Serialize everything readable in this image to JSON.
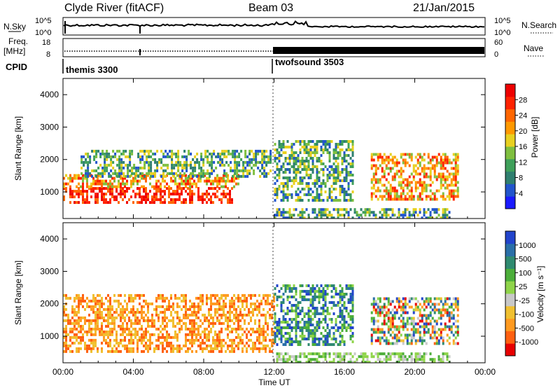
{
  "header": {
    "station": "Clyde River (fitACF)",
    "beam": "Beam 03",
    "date": "21/Jan/2015"
  },
  "noise_panel": {
    "left_label": "N.Sky",
    "right_label": "N.Search",
    "left_ticks": [
      "10^5",
      "10^0"
    ],
    "right_ticks": [
      "10^5",
      "10^0"
    ]
  },
  "freq_panel": {
    "left_label_1": "Freq.",
    "left_label_2": "[MHz]",
    "right_label": "Nave",
    "left_ticks": [
      "18",
      "8"
    ],
    "right_ticks": [
      "60",
      "0"
    ]
  },
  "cpid": {
    "label": "CPID",
    "segments": [
      {
        "name": "themis 3300",
        "start_hour": 0
      },
      {
        "name": "twofsound 3503",
        "start_hour": 12
      }
    ]
  },
  "chart_data": [
    {
      "type": "heatmap",
      "quantity": "Power",
      "ylabel": "Slant Range [km]",
      "xlabel": "",
      "ylim": [
        180,
        4500
      ],
      "yticks": [
        1000,
        2000,
        3000,
        4000
      ],
      "xlim": [
        0,
        24
      ],
      "xticklabels": [
        "00:00",
        "04:00",
        "08:00",
        "12:00",
        "16:00",
        "20:00",
        "00:00"
      ],
      "colorbar": {
        "label": "Power [dB]",
        "ticks": [
          "4",
          "8",
          "12",
          "16",
          "20",
          "24",
          "28"
        ],
        "range": [
          0,
          30
        ],
        "colors": [
          "#1a1aff",
          "#2255cc",
          "#2f7f6f",
          "#3fa05a",
          "#7fbf3f",
          "#e8d020",
          "#ff9900",
          "#ff6600",
          "#ff2200",
          "#ee0000"
        ]
      },
      "regions": [
        {
          "t0": 0.0,
          "t1": 9.6,
          "r0": 650,
          "r1": 1150,
          "level": "high"
        },
        {
          "t0": 0.0,
          "t1": 10.0,
          "r0": 1150,
          "r1": 1550,
          "level": "mid"
        },
        {
          "t0": 1.0,
          "t1": 11.8,
          "r0": 1500,
          "r1": 2300,
          "level": "low"
        },
        {
          "t0": 12.0,
          "t1": 16.5,
          "r0": 700,
          "r1": 2600,
          "level": "low"
        },
        {
          "t0": 17.5,
          "t1": 22.5,
          "r0": 800,
          "r1": 2200,
          "level": "mid"
        },
        {
          "t0": 12.0,
          "t1": 22.0,
          "r0": 200,
          "r1": 500,
          "level": "low"
        }
      ]
    },
    {
      "type": "heatmap",
      "quantity": "Velocity",
      "ylabel": "Slant Range [km]",
      "xlabel": "Time UT",
      "ylim": [
        180,
        4500
      ],
      "yticks": [
        1000,
        2000,
        3000,
        4000
      ],
      "xlim": [
        0,
        24
      ],
      "xticklabels": [
        "00:00",
        "04:00",
        "08:00",
        "12:00",
        "16:00",
        "20:00",
        "00:00"
      ],
      "colorbar": {
        "label": "Velocity [m s⁻¹]",
        "ticks": [
          "1000",
          "500",
          "100",
          "25",
          "-25",
          "-100",
          "-500",
          "-1000"
        ],
        "colors": [
          "#2244cc",
          "#2a6fa8",
          "#2f8a70",
          "#4cae3a",
          "#8fd44a",
          "#c8c8c8",
          "#f0c030",
          "#ff9a20",
          "#ff6010",
          "#e80000"
        ]
      },
      "regions": [
        {
          "t0": 0.0,
          "t1": 12.0,
          "r0": 500,
          "r1": 2300,
          "level": "negative"
        },
        {
          "t0": 12.0,
          "t1": 16.5,
          "r0": 700,
          "r1": 2600,
          "level": "positive"
        },
        {
          "t0": 17.5,
          "t1": 22.5,
          "r0": 800,
          "r1": 2200,
          "level": "mixed"
        },
        {
          "t0": 12.0,
          "t1": 22.0,
          "r0": 200,
          "r1": 500,
          "level": "ground"
        }
      ]
    }
  ]
}
